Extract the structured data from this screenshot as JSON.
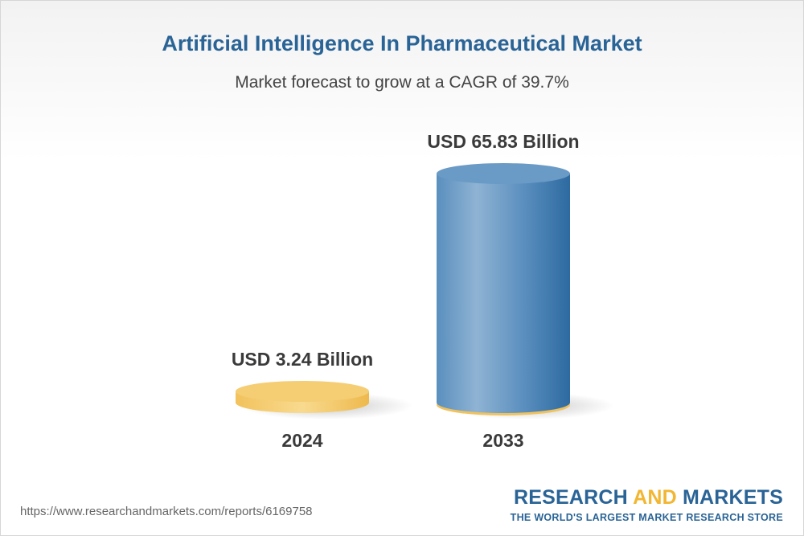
{
  "chart_data": {
    "type": "bar",
    "title": "Artificial Intelligence In Pharmaceutical Market",
    "subtitle": "Market forecast to grow at a CAGR of 39.7%",
    "categories": [
      "2024",
      "2033"
    ],
    "values": [
      3.24,
      65.83
    ],
    "value_labels": [
      "USD 3.24 Billion",
      "USD 65.83 Billion"
    ],
    "unit": "USD Billion",
    "grid": false,
    "legend": "none",
    "colors": {
      "bar_2024": "#f4c865",
      "bar_2033": "#4f86b6",
      "title": "#2a6496",
      "accent": "#f2b632"
    }
  },
  "footer": {
    "url": "https://www.researchandmarkets.com/reports/6169758"
  },
  "brand": {
    "name_part1": "RESEARCH ",
    "name_part2": "AND",
    "name_part3": " MARKETS",
    "tagline": "THE WORLD'S LARGEST MARKET RESEARCH STORE"
  }
}
